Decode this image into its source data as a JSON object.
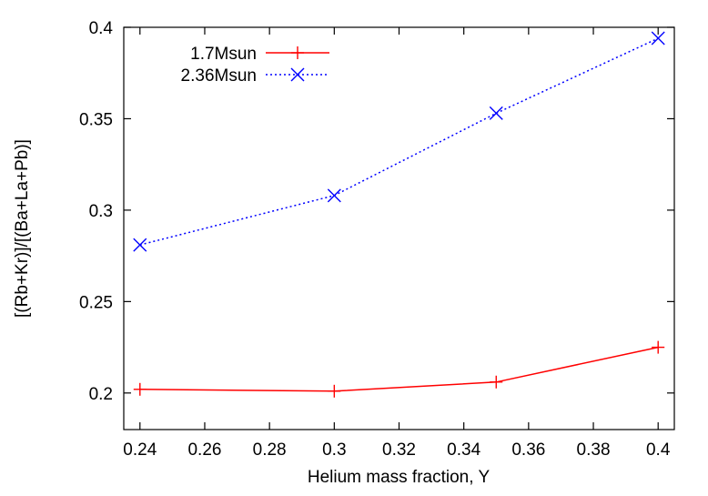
{
  "chart_data": {
    "type": "line",
    "xlabel": "Helium mass fraction, Y",
    "ylabel": "[(Rb+Kr)]/[(Ba+La+Pb)]",
    "xlim": [
      0.235,
      0.405
    ],
    "ylim": [
      0.18,
      0.4
    ],
    "x_ticks": [
      0.24,
      0.26,
      0.28,
      0.3,
      0.32,
      0.34,
      0.36,
      0.38,
      0.4
    ],
    "x_tick_labels": [
      "0.24",
      "0.26",
      "0.28",
      "0.3",
      "0.32",
      "0.34",
      "0.36",
      "0.38",
      "0.4"
    ],
    "y_ticks": [
      0.2,
      0.25,
      0.3,
      0.35,
      0.4
    ],
    "y_tick_labels": [
      "0.2",
      "0.25",
      "0.3",
      "0.35",
      "0.4"
    ],
    "grid": false,
    "legend_position": "top-left",
    "series": [
      {
        "name": "1.7Msun",
        "color": "#ff0000",
        "line_style": "solid",
        "marker": "plus",
        "x": [
          0.24,
          0.3,
          0.35,
          0.4
        ],
        "y": [
          0.202,
          0.201,
          0.206,
          0.225
        ]
      },
      {
        "name": "2.36Msun",
        "color": "#0000ff",
        "line_style": "dotted",
        "marker": "cross",
        "x": [
          0.24,
          0.3,
          0.35,
          0.4
        ],
        "y": [
          0.281,
          0.308,
          0.353,
          0.394
        ]
      }
    ]
  }
}
